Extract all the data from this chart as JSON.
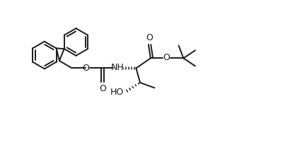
{
  "bg_color": "#ffffff",
  "line_color": "#1a1a1a",
  "line_width": 1.4,
  "font_size": 8.0,
  "figsize": [
    4.34,
    2.08
  ],
  "dpi": 100,
  "xlim": [
    -0.5,
    10.5
  ],
  "ylim": [
    -0.3,
    5.3
  ]
}
